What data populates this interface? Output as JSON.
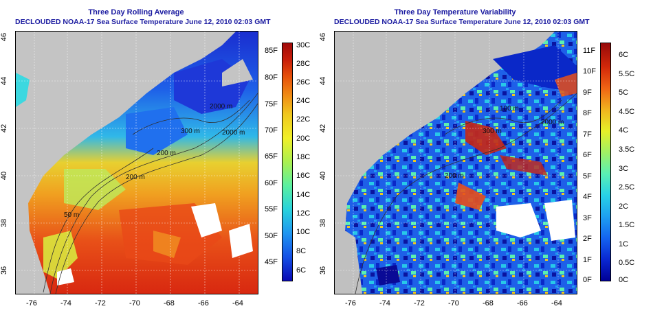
{
  "left": {
    "title": "Three Day Rolling Average",
    "subtitle": "DECLOUDED NOAA-17 Sea Surface Temperature June 12, 2010 02:03 GMT",
    "x_ticks": [
      "-76",
      "-74",
      "-72",
      "-70",
      "-68",
      "-66",
      "-64"
    ],
    "y_ticks": [
      "46",
      "44",
      "42",
      "40",
      "38",
      "36"
    ],
    "contour_labels": [
      "2000 m",
      "200 m",
      "2000 m",
      "300 m",
      "200 m",
      "50 m"
    ],
    "cbar_f": [
      "85F",
      "80F",
      "75F",
      "70F",
      "65F",
      "60F",
      "55F",
      "50F",
      "45F"
    ],
    "cbar_c": [
      "30C",
      "28C",
      "26C",
      "24C",
      "22C",
      "20C",
      "18C",
      "16C",
      "14C",
      "12C",
      "10C",
      "8C",
      "6C"
    ],
    "cbar_colors": [
      "#0a0ab4",
      "#1450e6",
      "#1e96f0",
      "#28d2dc",
      "#5af0a0",
      "#aaf050",
      "#f0f028",
      "#f0c81e",
      "#f08c14",
      "#e6500a",
      "#c81e0a",
      "#a00a0a"
    ]
  },
  "right": {
    "title": "Three Day Temperature Variability",
    "subtitle": "DECLOUDED NOAA-17 Sea Surface Temperature June 12, 2010 02:03 GMT",
    "x_ticks": [
      "-76",
      "-74",
      "-72",
      "-70",
      "-68",
      "-66",
      "-64"
    ],
    "y_ticks": [
      "46",
      "44",
      "42",
      "40",
      "38",
      "36"
    ],
    "contour_labels": [
      "2000 m",
      "100 m",
      "300 m",
      "200 m"
    ],
    "cbar_f": [
      "11F",
      "10F",
      "9F",
      "8F",
      "7F",
      "6F",
      "5F",
      "4F",
      "3F",
      "2F",
      "1F",
      "0F"
    ],
    "cbar_c": [
      "6C",
      "5.5C",
      "5C",
      "4.5C",
      "4C",
      "3.5C",
      "3C",
      "2.5C",
      "2C",
      "1.5C",
      "1C",
      "0.5C",
      "0C"
    ],
    "cbar_colors": [
      "#000096",
      "#0a28d2",
      "#1464f0",
      "#1ea0f0",
      "#28d2e6",
      "#5af0b4",
      "#a0f064",
      "#e6f028",
      "#f0b41e",
      "#f06414",
      "#d2280a",
      "#960a0a"
    ]
  }
}
